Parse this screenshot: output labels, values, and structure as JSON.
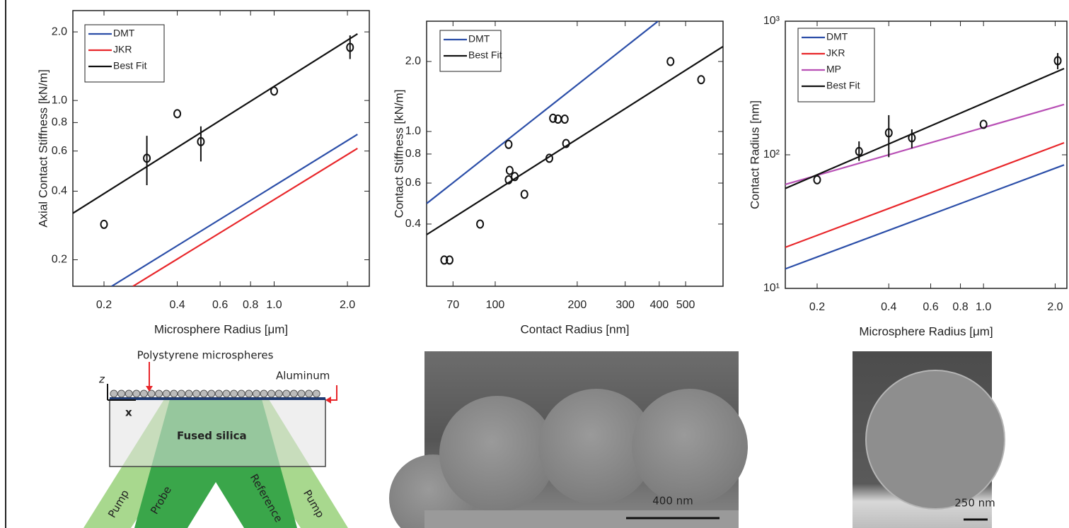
{
  "chart_data": [
    {
      "type": "line",
      "xlabel": "Microsphere Radius [μm]",
      "ylabel": "Axial Contact Stiffness [kN/m]",
      "xscale": "log",
      "yscale": "log",
      "xlim": [
        0.149,
        2.46
      ],
      "ylim": [
        0.153,
        2.48
      ],
      "xticks": [
        0.2,
        0.4,
        0.6,
        0.8,
        {
          "value": 1,
          "label": "1.0"
        },
        {
          "value": 2,
          "label": "2.0"
        }
      ],
      "yticks": [
        0.2,
        0.4,
        0.6,
        0.8,
        {
          "value": 1,
          "label": "1.0"
        },
        {
          "value": 2,
          "label": "2.0"
        }
      ],
      "legend": "upper left",
      "series": [
        {
          "name": "DMT",
          "color": "#2b4ea8",
          "x": [
            0.215,
            2.2
          ],
          "values": [
            0.153,
            0.71
          ]
        },
        {
          "name": "JKR",
          "color": "#e8262a",
          "x": [
            0.263,
            2.2
          ],
          "values": [
            0.153,
            0.616
          ]
        },
        {
          "name": "Best Fit",
          "color": "#111111",
          "x": [
            0.149,
            2.2
          ],
          "values": [
            0.32,
            1.96
          ]
        },
        {
          "mode": "markers",
          "color": "#111111",
          "x": [
            0.2,
            0.3,
            0.4,
            0.5,
            1.0,
            2.05
          ],
          "values": [
            0.286,
            0.558,
            0.875,
            0.66,
            1.1,
            1.71
          ],
          "err_low": [
            null,
            0.425,
            null,
            0.54,
            null,
            1.52
          ],
          "err_high": [
            null,
            0.7,
            null,
            0.77,
            null,
            1.93
          ]
        }
      ]
    },
    {
      "type": "line",
      "xlabel": "Contact Radius [nm]",
      "ylabel": "Contact Stiffness [kN/m]",
      "xscale": "log",
      "yscale": "log",
      "xlim": [
        56,
        686
      ],
      "ylim": [
        0.216,
        2.98
      ],
      "xticks": [
        70,
        100,
        200,
        300,
        400,
        500
      ],
      "yticks": [
        0.4,
        0.6,
        0.8,
        {
          "value": 1,
          "label": "1.0"
        },
        {
          "value": 2,
          "label": "2.0"
        }
      ],
      "legend": "upper left",
      "series": [
        {
          "name": "DMT",
          "color": "#2b4ea8",
          "x": [
            56,
            396
          ],
          "values": [
            0.49,
            2.98
          ]
        },
        {
          "name": "Best Fit",
          "color": "#111111",
          "x": [
            56,
            686
          ],
          "values": [
            0.36,
            2.32
          ]
        },
        {
          "mode": "markers",
          "color": "#111111",
          "x": [
            65,
            68,
            88,
            112,
            113,
            112,
            118,
            128,
            158,
            163,
            170,
            180,
            182,
            440,
            570
          ],
          "values": [
            0.28,
            0.28,
            0.4,
            0.88,
            0.68,
            0.62,
            0.64,
            0.537,
            0.767,
            1.14,
            1.13,
            1.13,
            0.888,
            2.0,
            1.67
          ]
        }
      ]
    },
    {
      "type": "line",
      "xlabel": "Microsphere Radius [μm]",
      "ylabel": "Contact Radius [nm]",
      "xscale": "log",
      "yscale": "log",
      "xlim": [
        0.147,
        2.24
      ],
      "ylim": [
        10,
        1000
      ],
      "xticks": [
        0.2,
        0.4,
        0.6,
        0.8,
        {
          "value": 1,
          "label": "1.0"
        },
        {
          "value": 2,
          "label": "2.0"
        }
      ],
      "yticks": [
        {
          "value": 10,
          "label": "10¹"
        },
        {
          "value": 100,
          "label": "10²"
        },
        {
          "value": 1000,
          "label": "10³"
        }
      ],
      "legend": "upper left",
      "series": [
        {
          "name": "DMT",
          "color": "#2b4ea8",
          "x": [
            0.147,
            2.18
          ],
          "values": [
            14,
            84
          ]
        },
        {
          "name": "JKR",
          "color": "#e8262a",
          "x": [
            0.147,
            2.18
          ],
          "values": [
            20.3,
            123
          ]
        },
        {
          "name": "MP",
          "color": "#b84fb5",
          "x": [
            0.147,
            2.18
          ],
          "values": [
            60,
            238
          ]
        },
        {
          "name": "Best Fit",
          "color": "#111111",
          "x": [
            0.147,
            2.18
          ],
          "values": [
            56,
            442
          ]
        },
        {
          "mode": "markers",
          "color": "#111111",
          "x": [
            0.2,
            0.3,
            0.4,
            0.5,
            1.0,
            2.05
          ],
          "values": [
            65,
            106,
            146,
            134,
            169,
            506
          ],
          "err_low": [
            null,
            90,
            96,
            112,
            null,
            437
          ],
          "err_high": [
            null,
            126,
            198,
            155,
            null,
            578
          ]
        }
      ]
    }
  ],
  "diagram": {
    "top_label": "Polystyrene microspheres",
    "side_label": "Aluminum",
    "z_axis": "z",
    "x_axis": "x",
    "substrate": "Fused silica",
    "beams": [
      "Pump",
      "Probe",
      "Reference",
      "Pump"
    ]
  },
  "micrographs": [
    {
      "scale_bar": "400 nm"
    },
    {
      "scale_bar": "250 nm"
    }
  ]
}
